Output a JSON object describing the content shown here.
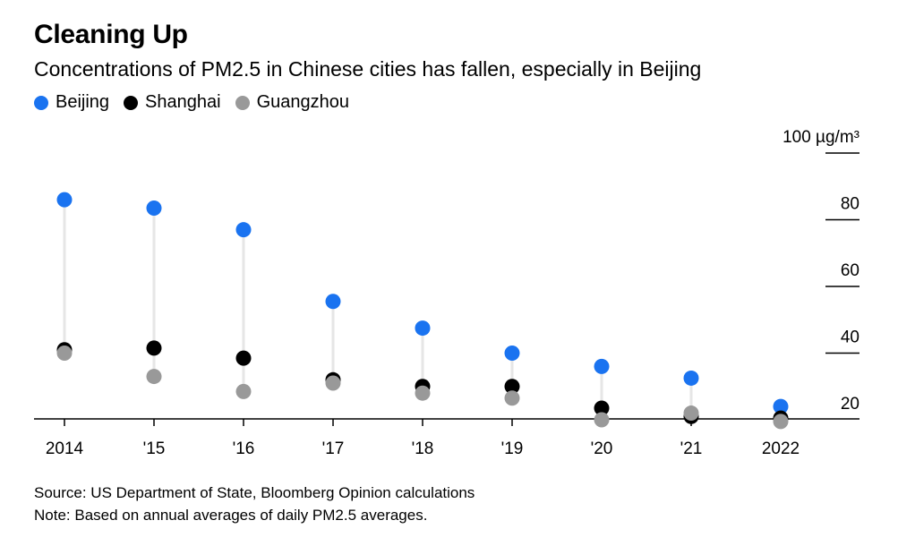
{
  "chart_data": {
    "type": "scatter",
    "title": "Cleaning Up",
    "subtitle": "Concentrations of PM2.5 in Chinese cities has fallen, especially in Beijing",
    "categories": [
      "2014",
      "'15",
      "'16",
      "'17",
      "'18",
      "'19",
      "'20",
      "'21",
      "2022"
    ],
    "series": [
      {
        "name": "Beijing",
        "color": "#1a73f0",
        "values": [
          86,
          83.5,
          77,
          55.5,
          47.5,
          40,
          36,
          32.5,
          24
        ]
      },
      {
        "name": "Shanghai",
        "color": "#000000",
        "values": [
          41,
          41.5,
          38.5,
          32,
          30,
          30,
          23.5,
          21,
          20.5
        ]
      },
      {
        "name": "Guangzhou",
        "color": "#999999",
        "values": [
          40,
          33,
          28.5,
          31,
          28,
          26.5,
          20,
          22,
          19.5
        ]
      }
    ],
    "ylabel": "",
    "yunit": "µg/m³",
    "ylim": [
      15,
      100
    ],
    "yticks": [
      100,
      80,
      60,
      40,
      20
    ],
    "ytick_labels": [
      "100 µg/m³",
      "80",
      "60",
      "40",
      "20"
    ],
    "legend_position": "top-left"
  },
  "footer": {
    "source": "Source: US Department of State, Bloomberg Opinion calculations",
    "note": "Note: Based on annual averages of daily PM2.5 averages."
  }
}
